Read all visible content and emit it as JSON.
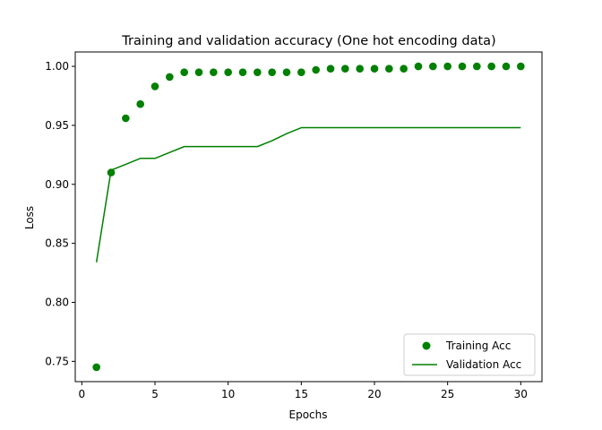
{
  "chart_data": {
    "type": "line",
    "title": "Training and validation accuracy (One hot encoding data)",
    "xlabel": "Epochs",
    "ylabel": "Loss",
    "xlim": [
      -0.45,
      31.45
    ],
    "ylim": [
      0.7328,
      1.0122
    ],
    "xticks": [
      0,
      5,
      10,
      15,
      20,
      25,
      30
    ],
    "yticks": [
      0.75,
      0.8,
      0.85,
      0.9,
      0.95,
      1.0
    ],
    "ytick_labels": [
      "0.75",
      "0.80",
      "0.85",
      "0.90",
      "0.95",
      "1.00"
    ],
    "grid": false,
    "legend_position": "lower-right",
    "color": "#008000",
    "series": [
      {
        "name": "Training Acc",
        "style": "markers",
        "x": [
          1,
          2,
          3,
          4,
          5,
          6,
          7,
          8,
          9,
          10,
          11,
          12,
          13,
          14,
          15,
          16,
          17,
          18,
          19,
          20,
          21,
          22,
          23,
          24,
          25,
          26,
          27,
          28,
          29,
          30
        ],
        "values": [
          0.745,
          0.91,
          0.956,
          0.968,
          0.983,
          0.991,
          0.995,
          0.995,
          0.995,
          0.995,
          0.995,
          0.995,
          0.995,
          0.995,
          0.995,
          0.997,
          0.998,
          0.998,
          0.998,
          0.998,
          0.998,
          0.998,
          1.0,
          1.0,
          1.0,
          1.0,
          1.0,
          1.0,
          1.0,
          1.0
        ]
      },
      {
        "name": "Validation Acc",
        "style": "line",
        "x": [
          1,
          2,
          3,
          4,
          5,
          6,
          7,
          8,
          9,
          10,
          11,
          12,
          13,
          14,
          15,
          16,
          17,
          18,
          19,
          20,
          21,
          22,
          23,
          24,
          25,
          26,
          27,
          28,
          29,
          30
        ],
        "values": [
          0.834,
          0.912,
          0.917,
          0.922,
          0.922,
          0.927,
          0.932,
          0.932,
          0.932,
          0.932,
          0.932,
          0.932,
          0.937,
          0.943,
          0.948,
          0.948,
          0.948,
          0.948,
          0.948,
          0.948,
          0.948,
          0.948,
          0.948,
          0.948,
          0.948,
          0.948,
          0.948,
          0.948,
          0.948,
          0.948
        ]
      }
    ]
  }
}
